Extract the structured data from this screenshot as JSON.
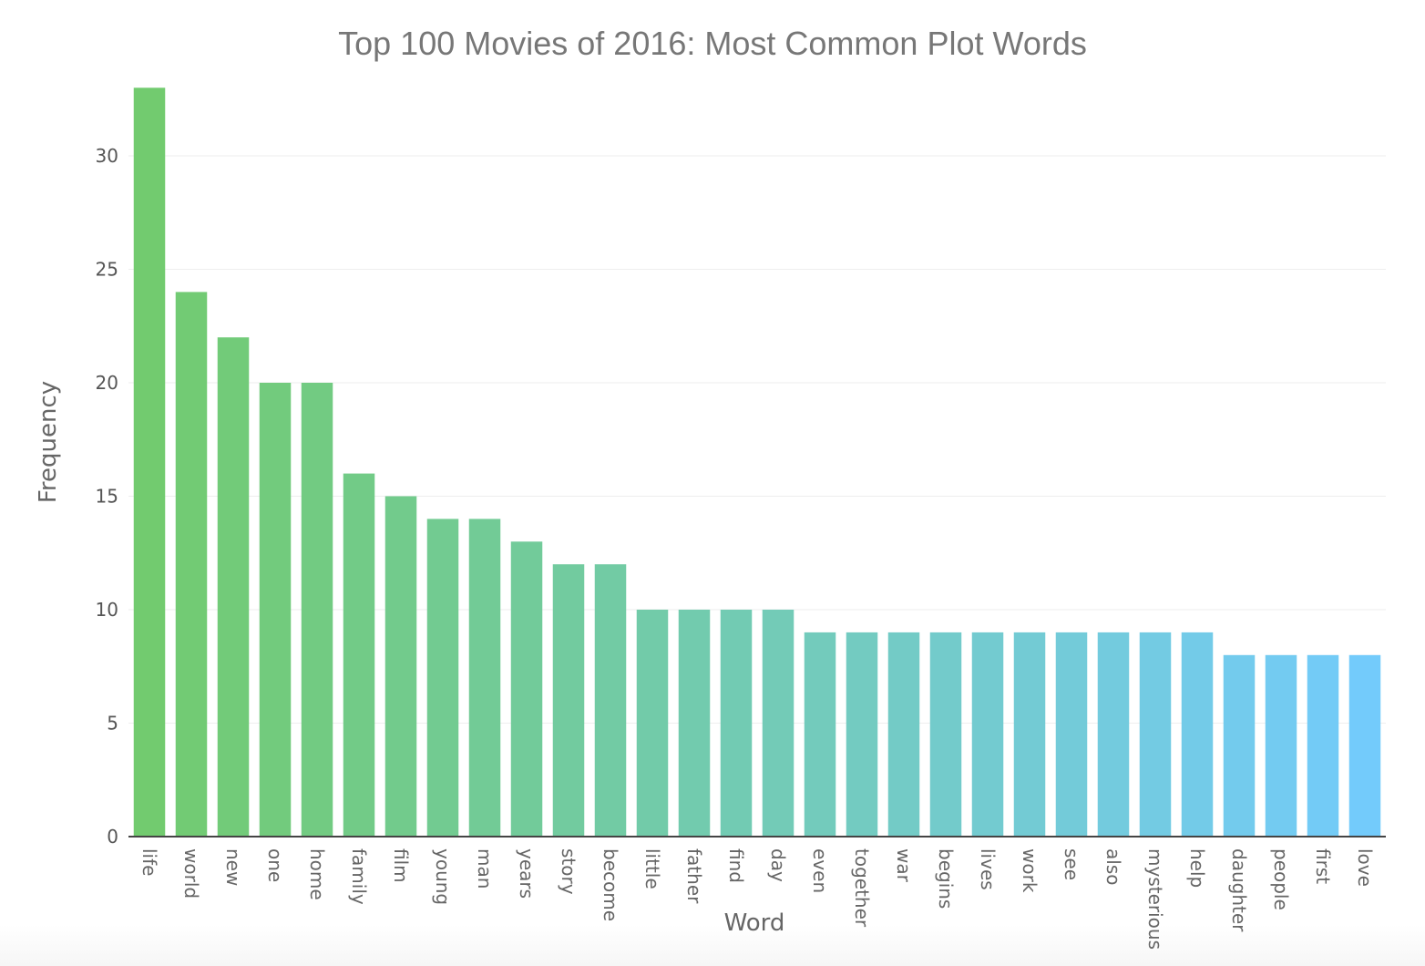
{
  "chart_data": {
    "type": "bar",
    "title": "Top 100 Movies of 2016: Most Common Plot Words",
    "xlabel": "Word",
    "ylabel": "Frequency",
    "ylim": [
      0,
      33
    ],
    "yticks": [
      0,
      5,
      10,
      15,
      20,
      25,
      30
    ],
    "grid": true,
    "legend": "none",
    "categories": [
      "life",
      "world",
      "new",
      "one",
      "home",
      "family",
      "film",
      "young",
      "man",
      "years",
      "story",
      "become",
      "little",
      "father",
      "find",
      "day",
      "even",
      "together",
      "war",
      "begins",
      "lives",
      "work",
      "see",
      "also",
      "mysterious",
      "help",
      "daughter",
      "people",
      "first",
      "love"
    ],
    "values": [
      33,
      24,
      22,
      20,
      20,
      16,
      15,
      14,
      14,
      13,
      12,
      12,
      10,
      10,
      10,
      10,
      9,
      9,
      9,
      9,
      9,
      9,
      9,
      9,
      9,
      9,
      8,
      8,
      8,
      8
    ],
    "color_start": "#72cb6f",
    "color_end": "#73cbfb"
  }
}
